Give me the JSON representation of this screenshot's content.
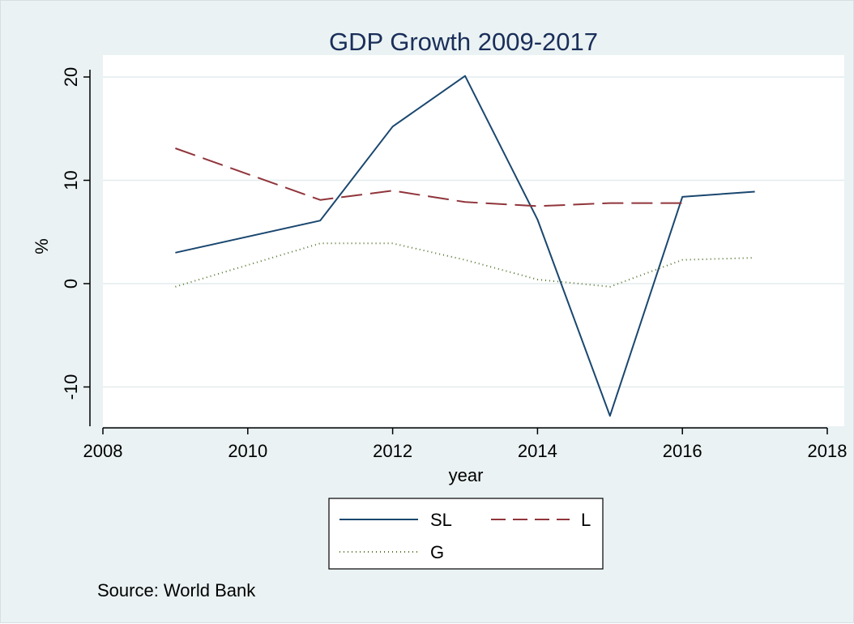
{
  "chart_data": {
    "type": "line",
    "title": "GDP Growth 2009-2017",
    "xlabel": "year",
    "ylabel": "%",
    "xlim": [
      2008,
      2018
    ],
    "ylim": [
      -13,
      21
    ],
    "x_ticks": [
      "2008",
      "2010",
      "2012",
      "2014",
      "2016",
      "2018"
    ],
    "y_ticks": [
      "20",
      "10",
      "0",
      "-10"
    ],
    "grid": true,
    "legend_position": "bottom-center",
    "note": "Source: World Bank",
    "series": [
      {
        "name": "SL",
        "style": "solid",
        "color": "#1a476f",
        "x": [
          2009,
          2011,
          2012,
          2013,
          2014,
          2015,
          2016,
          2017
        ],
        "values": [
          3.0,
          6.1,
          15.2,
          20.1,
          6.2,
          -12.8,
          8.4,
          8.9
        ]
      },
      {
        "name": "L",
        "style": "dashed",
        "color": "#90353b",
        "x": [
          2009,
          2011,
          2012,
          2013,
          2014,
          2015,
          2016
        ],
        "values": [
          13.1,
          8.1,
          9.0,
          7.9,
          7.5,
          7.8,
          7.8
        ]
      },
      {
        "name": "G",
        "style": "dotted",
        "color": "#55752f",
        "x": [
          2009,
          2011,
          2012,
          2013,
          2014,
          2015,
          2016,
          2017
        ],
        "values": [
          -0.3,
          3.9,
          3.9,
          2.3,
          0.4,
          -0.3,
          2.3,
          2.5
        ]
      }
    ]
  }
}
